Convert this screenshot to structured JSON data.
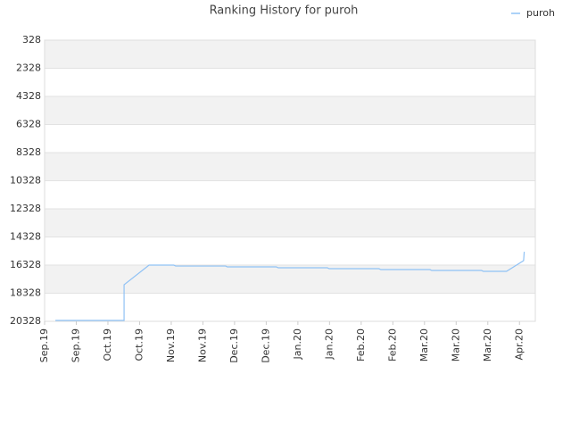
{
  "chart_data": {
    "type": "line",
    "title": "Ranking History for puroh",
    "x": [
      0.34,
      2.51,
      2.51,
      3.3,
      4.08,
      4.14,
      5.72,
      5.77,
      7.32,
      7.38,
      8.93,
      8.99,
      10.56,
      10.62,
      12.17,
      12.23,
      13.8,
      13.86,
      14.59,
      15.13,
      15.15
    ],
    "series": [
      {
        "name": "puroh",
        "color": "#90c2f5",
        "values": [
          20265,
          20265,
          17727,
          16330,
          16330,
          16394,
          16394,
          16457,
          16457,
          16520,
          16520,
          16584,
          16584,
          16647,
          16647,
          16711,
          16711,
          16774,
          16774,
          16012,
          15377
        ]
      }
    ],
    "xlim": [
      0,
      15.5
    ],
    "xticks": [
      {
        "value": 0,
        "label": "Sep.19"
      },
      {
        "value": 1,
        "label": "Sep.19"
      },
      {
        "value": 2,
        "label": "Oct.19"
      },
      {
        "value": 3,
        "label": "Oct.19"
      },
      {
        "value": 4,
        "label": "Nov.19"
      },
      {
        "value": 5,
        "label": "Nov.19"
      },
      {
        "value": 6,
        "label": "Dec.19"
      },
      {
        "value": 7,
        "label": "Dec.19"
      },
      {
        "value": 8,
        "label": "Jan.20"
      },
      {
        "value": 9,
        "label": "Jan.20"
      },
      {
        "value": 10,
        "label": "Feb.20"
      },
      {
        "value": 11,
        "label": "Feb.20"
      },
      {
        "value": 12,
        "label": "Mar.20"
      },
      {
        "value": 13,
        "label": "Mar.20"
      },
      {
        "value": 14,
        "label": "Mar.20"
      },
      {
        "value": 15,
        "label": "Apr.20"
      }
    ],
    "ylim": [
      20328,
      328
    ],
    "yticks": [
      328,
      2328,
      4328,
      6328,
      8328,
      10328,
      12328,
      14328,
      16328,
      18328,
      20328
    ],
    "grid": true,
    "legend": "top-right"
  }
}
